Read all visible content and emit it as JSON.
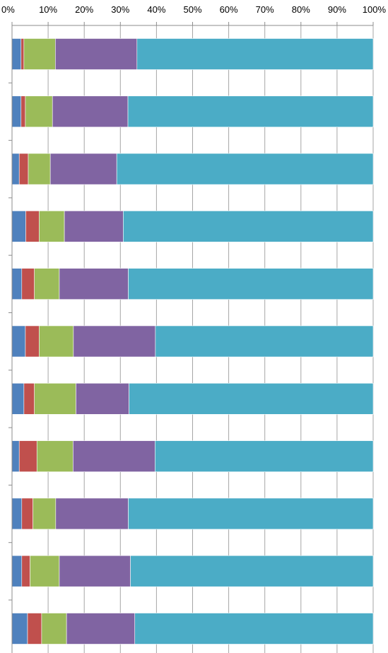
{
  "chart_data": {
    "type": "bar",
    "orientation": "horizontal",
    "stacking": "percent",
    "grid": true,
    "legend": "none",
    "title": "",
    "xlabel": "",
    "ylabel": "",
    "xlim": [
      0,
      100
    ],
    "x_ticks": [
      0,
      10,
      20,
      30,
      40,
      50,
      60,
      70,
      80,
      90,
      100
    ],
    "x_tick_labels": [
      "0%",
      "10%",
      "20%",
      "30%",
      "40%",
      "50%",
      "60%",
      "70%",
      "80%",
      "90%",
      "100%"
    ],
    "x_axis_position": "top",
    "categories": [
      "",
      "",
      "",
      "",
      "",
      "",
      "",
      "",
      "",
      "",
      ""
    ],
    "series": [
      {
        "color": "#4F81BD",
        "values": [
          2.5,
          2.5,
          2.0,
          3.8,
          2.7,
          3.7,
          3.3,
          2.0,
          2.7,
          2.7,
          4.3
        ]
      },
      {
        "color": "#C0504D",
        "values": [
          0.8,
          1.2,
          2.5,
          3.7,
          3.5,
          3.8,
          2.9,
          4.9,
          3.1,
          2.3,
          3.9
        ]
      },
      {
        "color": "#9BBB59",
        "values": [
          8.7,
          7.5,
          6.1,
          7.0,
          6.9,
          9.5,
          11.5,
          10.0,
          6.3,
          8.1,
          6.9
        ]
      },
      {
        "color": "#8064A2",
        "values": [
          22.6,
          20.9,
          18.4,
          16.3,
          19.1,
          22.7,
          14.7,
          22.7,
          20.1,
          19.7,
          18.9
        ]
      },
      {
        "color": "#4BACC6",
        "values": [
          65.4,
          67.9,
          71.0,
          69.2,
          67.8,
          60.3,
          67.6,
          60.4,
          67.8,
          67.2,
          66.0
        ]
      }
    ]
  }
}
